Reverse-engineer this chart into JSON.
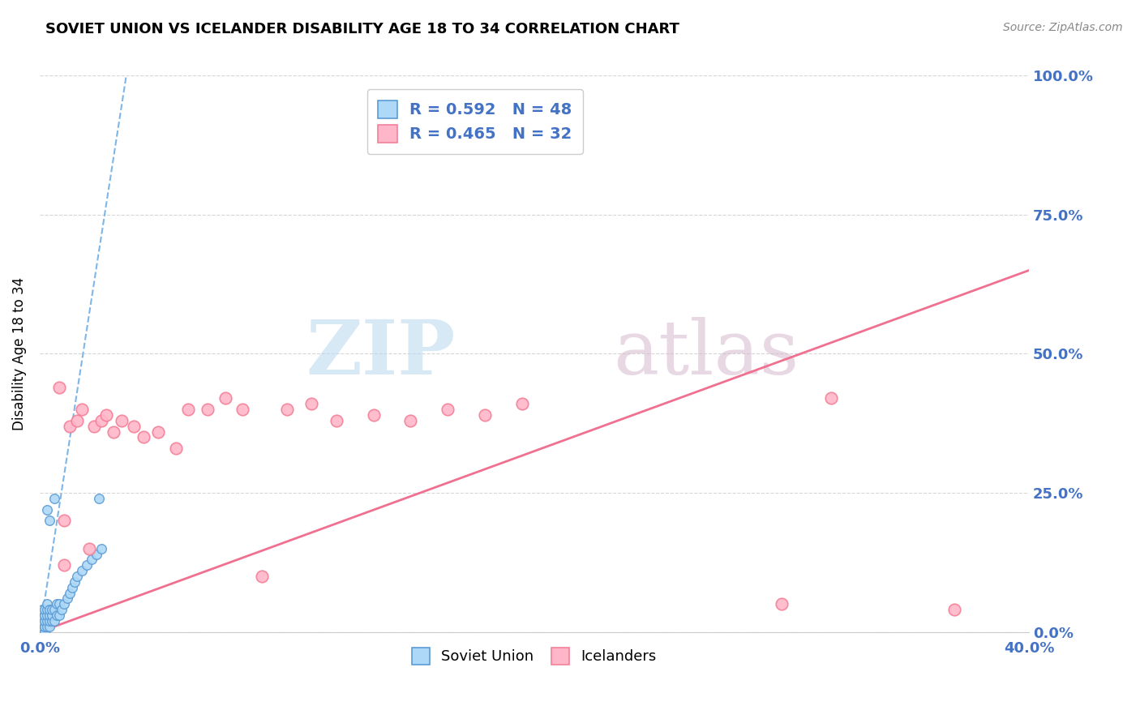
{
  "title": "SOVIET UNION VS ICELANDER DISABILITY AGE 18 TO 34 CORRELATION CHART",
  "source": "Source: ZipAtlas.com",
  "ylabel": "Disability Age 18 to 34",
  "xlim": [
    0,
    0.4
  ],
  "ylim": [
    0,
    1.0
  ],
  "soviet_R": 0.592,
  "soviet_N": 48,
  "icelander_R": 0.465,
  "icelander_N": 32,
  "soviet_color": "#ADD8F7",
  "soviet_edge_color": "#5B9BD5",
  "icelander_color": "#FFB6C8",
  "icelander_edge_color": "#F48098",
  "trendline_soviet_color": "#7EB6E8",
  "trendline_icelander_color": "#F07090",
  "background_color": "#FFFFFF",
  "grid_color": "#CCCCCC",
  "soviet_x": [
    0.001,
    0.001,
    0.001,
    0.001,
    0.001,
    0.001,
    0.001,
    0.001,
    0.002,
    0.002,
    0.002,
    0.002,
    0.002,
    0.002,
    0.003,
    0.003,
    0.003,
    0.003,
    0.003,
    0.004,
    0.004,
    0.004,
    0.004,
    0.005,
    0.005,
    0.005,
    0.006,
    0.006,
    0.007,
    0.007,
    0.008,
    0.008,
    0.009,
    0.01,
    0.011,
    0.012,
    0.013,
    0.014,
    0.015,
    0.017,
    0.019,
    0.021,
    0.023,
    0.025,
    0.003,
    0.004,
    0.006,
    0.024
  ],
  "soviet_y": [
    0.0,
    0.0,
    0.01,
    0.01,
    0.02,
    0.02,
    0.03,
    0.04,
    0.0,
    0.01,
    0.01,
    0.02,
    0.03,
    0.04,
    0.01,
    0.02,
    0.03,
    0.04,
    0.05,
    0.01,
    0.02,
    0.03,
    0.04,
    0.02,
    0.03,
    0.04,
    0.02,
    0.04,
    0.03,
    0.05,
    0.03,
    0.05,
    0.04,
    0.05,
    0.06,
    0.07,
    0.08,
    0.09,
    0.1,
    0.11,
    0.12,
    0.13,
    0.14,
    0.15,
    0.22,
    0.2,
    0.24,
    0.24
  ],
  "icelander_x": [
    0.008,
    0.01,
    0.012,
    0.015,
    0.017,
    0.02,
    0.022,
    0.025,
    0.027,
    0.03,
    0.033,
    0.038,
    0.042,
    0.048,
    0.055,
    0.06,
    0.068,
    0.075,
    0.082,
    0.09,
    0.1,
    0.11,
    0.12,
    0.135,
    0.15,
    0.165,
    0.18,
    0.195,
    0.3,
    0.32,
    0.37,
    0.01
  ],
  "icelander_y": [
    0.44,
    0.2,
    0.37,
    0.38,
    0.4,
    0.15,
    0.37,
    0.38,
    0.39,
    0.36,
    0.38,
    0.37,
    0.35,
    0.36,
    0.33,
    0.4,
    0.4,
    0.42,
    0.4,
    0.1,
    0.4,
    0.41,
    0.38,
    0.39,
    0.38,
    0.4,
    0.39,
    0.41,
    0.05,
    0.42,
    0.04,
    0.12
  ],
  "sov_trend_x": [
    0.0,
    0.035
  ],
  "sov_trend_y": [
    0.0,
    1.0
  ],
  "ice_trend_x": [
    0.0,
    0.4
  ],
  "ice_trend_y": [
    0.0,
    0.65
  ]
}
